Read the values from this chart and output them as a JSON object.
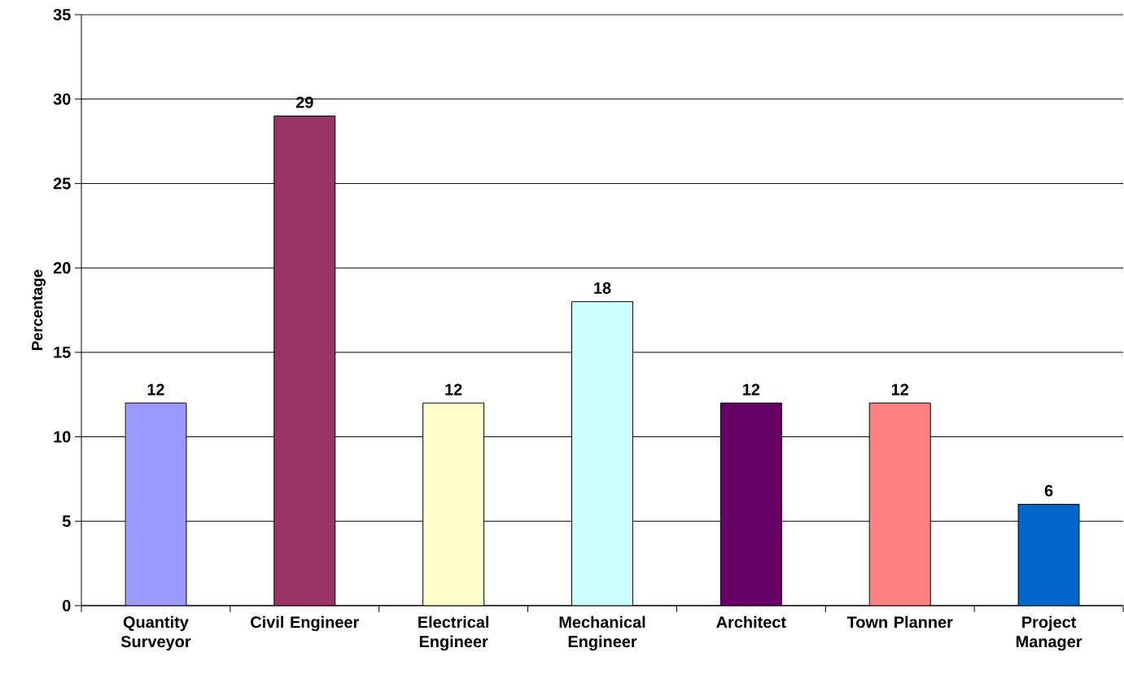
{
  "chart_data": {
    "type": "bar",
    "ylabel": "Percentage",
    "categories": [
      "Quantity Surveyor",
      "Civil Engineer",
      "Electrical Engineer",
      "Mechanical Engineer",
      "Architect",
      "Town Planner",
      "Project Manager"
    ],
    "values": [
      12,
      29,
      12,
      18,
      12,
      12,
      6
    ],
    "colors": [
      "#9999ff",
      "#993366",
      "#ffffcc",
      "#ccffff",
      "#660066",
      "#ff8080",
      "#0066cc"
    ],
    "ylim": [
      0,
      35
    ],
    "yticks": [
      0,
      5,
      10,
      15,
      20,
      25,
      30,
      35
    ],
    "grid": "y",
    "data_labels": true
  }
}
